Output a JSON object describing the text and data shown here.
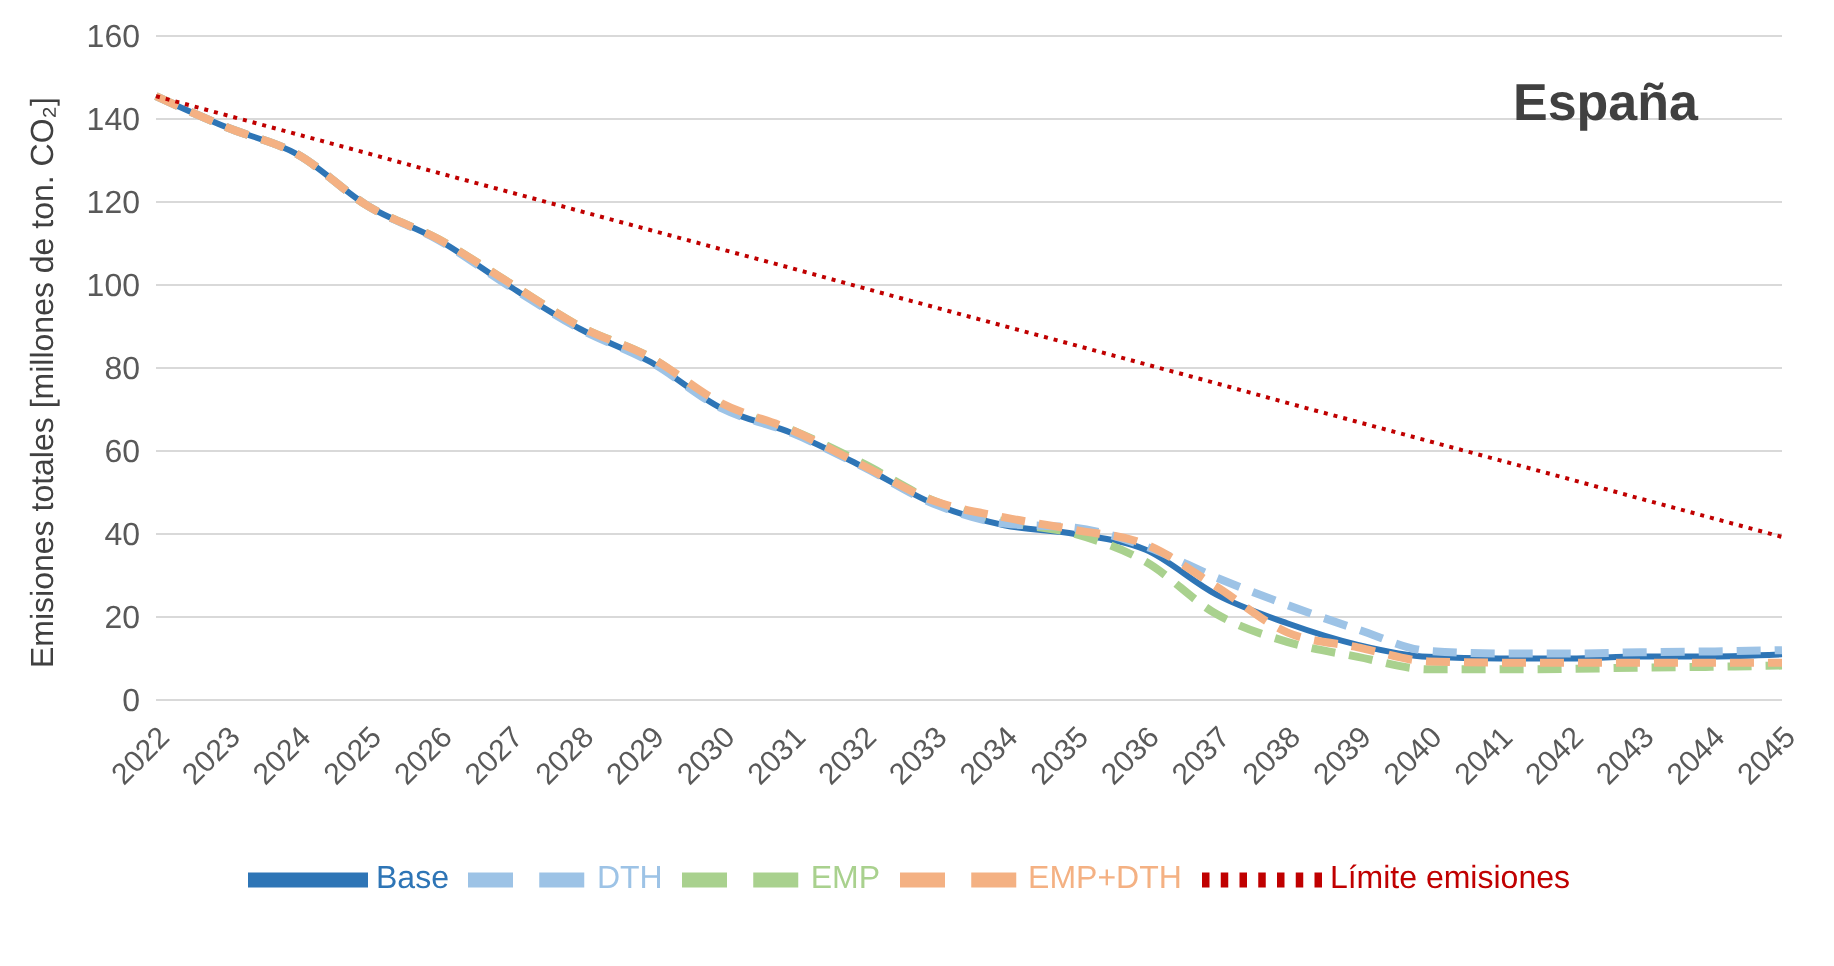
{
  "chart_data": {
    "type": "line",
    "title": "España",
    "ylabel": "Emisiones totales [millones de ton. CO₂]",
    "categories": [
      "2022",
      "2023",
      "2024",
      "2025",
      "2026",
      "2027",
      "2028",
      "2029",
      "2030",
      "2031",
      "2032",
      "2033",
      "2034",
      "2035",
      "2036",
      "2037",
      "2038",
      "2039",
      "2040",
      "2041",
      "2042",
      "2043",
      "2044",
      "2045"
    ],
    "series": [
      {
        "name": "Base",
        "color": "#2e75b6",
        "line_style": "solid",
        "values": [
          145.5,
          138,
          131.5,
          119,
          110.8,
          99.7,
          89.4,
          81.4,
          70.3,
          64.3,
          56.2,
          47.3,
          42.1,
          40,
          36.2,
          25.4,
          18.5,
          13.3,
          10.4,
          10,
          10,
          10.5,
          10.5,
          11
        ]
      },
      {
        "name": "EMP",
        "color": "#a9d18e",
        "line_style": "dashed",
        "values": [
          145.5,
          138,
          131.5,
          119,
          111,
          100.5,
          90,
          82.5,
          71,
          65,
          57,
          48,
          43,
          40,
          33.3,
          20.7,
          14,
          10.4,
          7.4,
          7.4,
          7.5,
          7.8,
          8,
          8.3
        ]
      },
      {
        "name": "DTH",
        "color": "#9dc3e6",
        "line_style": "dashed",
        "values": [
          145.5,
          138,
          131.5,
          119,
          110.8,
          99.7,
          89.4,
          81.4,
          70.3,
          64.3,
          56.2,
          47.3,
          42.5,
          41.5,
          37,
          29.5,
          22.9,
          17,
          11.8,
          11.2,
          11.2,
          11.5,
          11.7,
          12
        ]
      },
      {
        "name": "EMP+DTH",
        "color": "#f4b183",
        "line_style": "dashed",
        "values": [
          145.5,
          138,
          131.5,
          119,
          111,
          100.5,
          90,
          82.5,
          71.5,
          65,
          56.5,
          48,
          44,
          41,
          37.5,
          27.3,
          16.3,
          12.7,
          9.3,
          9,
          9,
          9,
          9,
          9
        ]
      },
      {
        "name": "Límite emisiones",
        "color": "#c00000",
        "line_style": "dotted",
        "values": [
          145.5,
          140.9,
          136.3,
          131.7,
          127.0,
          122.4,
          117.8,
          113.2,
          108.6,
          104.0,
          99.3,
          94.7,
          90.1,
          85.5,
          80.9,
          76.3,
          71.6,
          67.0,
          62.4,
          57.8,
          53.2,
          48.5,
          43.9,
          39.3
        ]
      }
    ],
    "ylim": [
      0,
      160
    ],
    "yticks": [
      0,
      20,
      40,
      60,
      80,
      100,
      120,
      140,
      160
    ],
    "grid": "y",
    "legend": "bottom",
    "marker": "none"
  }
}
